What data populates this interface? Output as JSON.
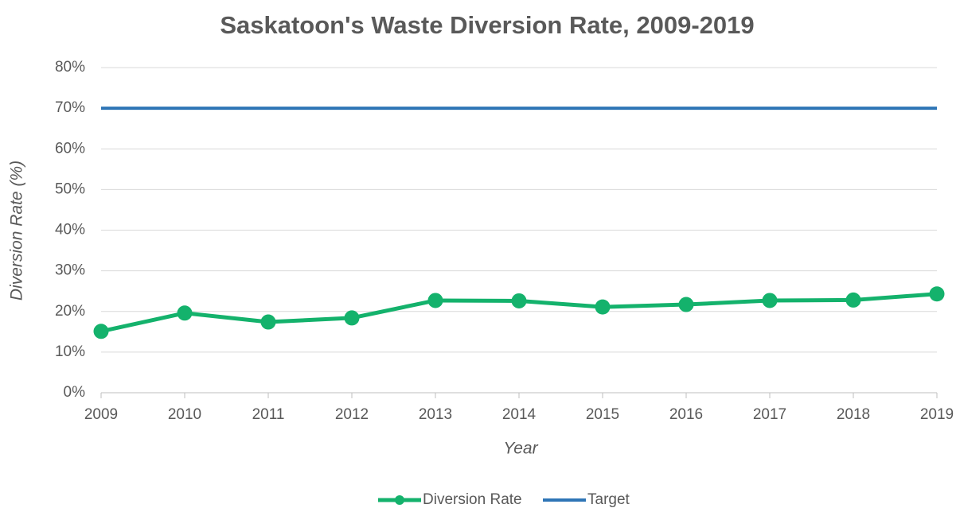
{
  "chart_data": {
    "type": "line",
    "title": "Saskatoon's Waste Diversion Rate, 2009-2019",
    "x_label": "Year",
    "y_label": "Diversion Rate (%)",
    "x": [
      2009,
      2010,
      2011,
      2012,
      2013,
      2014,
      2015,
      2016,
      2017,
      2018,
      2019
    ],
    "series": [
      {
        "name": "Diversion Rate",
        "color": "#14b26c",
        "marker": true,
        "values": [
          15.1,
          19.6,
          17.4,
          18.4,
          22.7,
          22.6,
          21.1,
          21.7,
          22.7,
          22.8,
          24.3
        ]
      },
      {
        "name": "Target",
        "color": "#2e75b6",
        "marker": false,
        "values": [
          70,
          70,
          70,
          70,
          70,
          70,
          70,
          70,
          70,
          70,
          70
        ]
      }
    ],
    "xlim": [
      2009,
      2019
    ],
    "xticks": [
      2009,
      2010,
      2011,
      2012,
      2013,
      2014,
      2015,
      2016,
      2017,
      2018,
      2019
    ],
    "ylim": [
      0,
      80
    ],
    "yticks": [
      {
        "value": 0,
        "label": "0%"
      },
      {
        "value": 10,
        "label": "10%"
      },
      {
        "value": 20,
        "label": "20%"
      },
      {
        "value": 30,
        "label": "30%"
      },
      {
        "value": 40,
        "label": "40%"
      },
      {
        "value": 50,
        "label": "50%"
      },
      {
        "value": 60,
        "label": "60%"
      },
      {
        "value": 70,
        "label": "70%"
      },
      {
        "value": 80,
        "label": "80%"
      }
    ],
    "grid": true,
    "legend": "bottom"
  }
}
